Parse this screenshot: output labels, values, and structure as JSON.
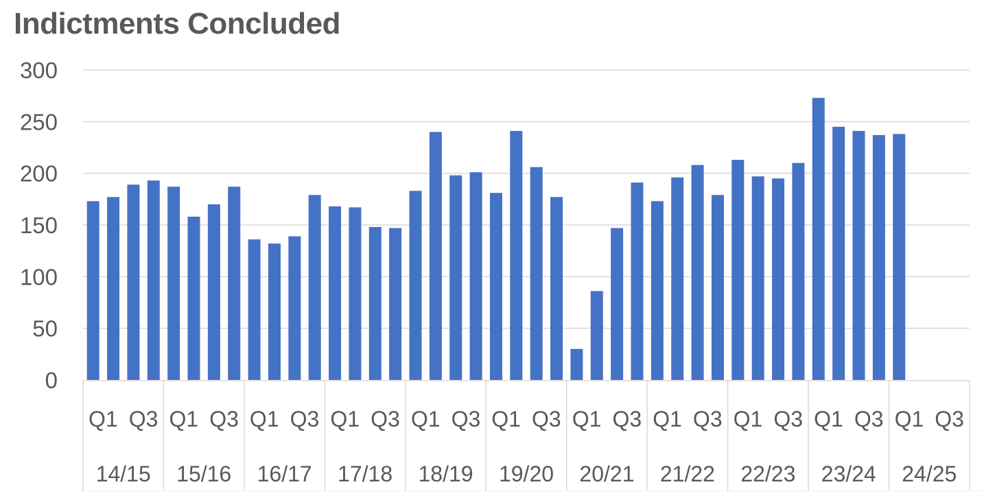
{
  "chart_data": {
    "type": "bar",
    "title": "Indictments Concluded",
    "xlabel": "",
    "ylabel": "",
    "ylim": [
      0,
      300
    ],
    "yticks": [
      0,
      50,
      100,
      150,
      200,
      250,
      300
    ],
    "grid": true,
    "legend": null,
    "bar_color": "#4472C4",
    "quarter_tick_labels": [
      "Q1",
      "Q3"
    ],
    "groups": [
      {
        "label": "14/15",
        "values": [
          173,
          177,
          189,
          193
        ]
      },
      {
        "label": "15/16",
        "values": [
          187,
          158,
          170,
          187
        ]
      },
      {
        "label": "16/17",
        "values": [
          136,
          132,
          139,
          179
        ]
      },
      {
        "label": "17/18",
        "values": [
          168,
          167,
          148,
          147
        ]
      },
      {
        "label": "18/19",
        "values": [
          183,
          240,
          198,
          201
        ]
      },
      {
        "label": "19/20",
        "values": [
          181,
          241,
          206,
          177
        ]
      },
      {
        "label": "20/21",
        "values": [
          30,
          86,
          147,
          191
        ]
      },
      {
        "label": "21/22",
        "values": [
          173,
          196,
          208,
          179
        ]
      },
      {
        "label": "22/23",
        "values": [
          213,
          197,
          195,
          210
        ]
      },
      {
        "label": "23/24",
        "values": [
          273,
          245,
          241,
          237
        ]
      },
      {
        "label": "24/25",
        "values": [
          238,
          null,
          null,
          null
        ]
      }
    ],
    "categories": [
      "14/15 Q1",
      "14/15 Q2",
      "14/15 Q3",
      "14/15 Q4",
      "15/16 Q1",
      "15/16 Q2",
      "15/16 Q3",
      "15/16 Q4",
      "16/17 Q1",
      "16/17 Q2",
      "16/17 Q3",
      "16/17 Q4",
      "17/18 Q1",
      "17/18 Q2",
      "17/18 Q3",
      "17/18 Q4",
      "18/19 Q1",
      "18/19 Q2",
      "18/19 Q3",
      "18/19 Q4",
      "19/20 Q1",
      "19/20 Q2",
      "19/20 Q3",
      "19/20 Q4",
      "20/21 Q1",
      "20/21 Q2",
      "20/21 Q3",
      "20/21 Q4",
      "21/22 Q1",
      "21/22 Q2",
      "21/22 Q3",
      "21/22 Q4",
      "22/23 Q1",
      "22/23 Q2",
      "22/23 Q3",
      "22/23 Q4",
      "23/24 Q1",
      "23/24 Q2",
      "23/24 Q3",
      "23/24 Q4",
      "24/25 Q1",
      "24/25 Q2",
      "24/25 Q3",
      "24/25 Q4"
    ],
    "values": [
      173,
      177,
      189,
      193,
      187,
      158,
      170,
      187,
      136,
      132,
      139,
      179,
      168,
      167,
      148,
      147,
      183,
      240,
      198,
      201,
      181,
      241,
      206,
      177,
      30,
      86,
      147,
      191,
      173,
      196,
      208,
      179,
      213,
      197,
      195,
      210,
      273,
      245,
      241,
      237,
      238,
      null,
      null,
      null
    ]
  }
}
